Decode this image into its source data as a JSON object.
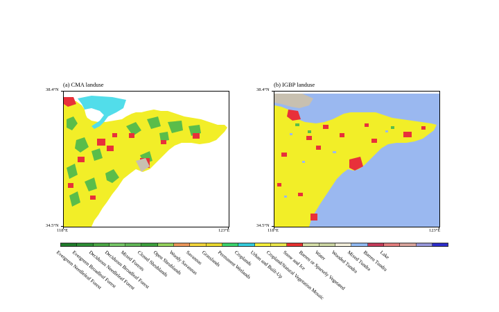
{
  "panels": [
    {
      "title": "(a) CMA landuse",
      "lat_top": "38.4°N",
      "lat_bottom": "34.5°N",
      "lon_left": "118°E",
      "lon_right": "123°E"
    },
    {
      "title": "(b) IGBP landuse",
      "lat_top": "38.4°N",
      "lat_bottom": "34.5°N",
      "lon_left": "118°E",
      "lon_right": "123°E"
    }
  ],
  "colors": {
    "croplands": "#f2ee28",
    "urban": "#e8303a",
    "water": "#9ab8f0",
    "forest": "#5abd4a",
    "wetland": "#52ddea",
    "barren": "#c8c0b0",
    "background": "#ffffff"
  },
  "legend": {
    "items": [
      {
        "label": "Evergreen Needleleaf Forest",
        "color": "#1f7a2a"
      },
      {
        "label": "Evergreen Broadleaf Forest",
        "color": "#2c8c34"
      },
      {
        "label": "Deciduous Needleleaf Forest",
        "color": "#4aa544"
      },
      {
        "label": "Deciduous Broadleaf Forest",
        "color": "#74c466"
      },
      {
        "label": "Mixed Forests",
        "color": "#5fb455"
      },
      {
        "label": "Closed Shrublands",
        "color": "#3c9e3c"
      },
      {
        "label": "Open Shrublands",
        "color": "#92cf5a"
      },
      {
        "label": "Woody Savannas",
        "color": "#e89457"
      },
      {
        "label": "Savannas",
        "color": "#f0d23a"
      },
      {
        "label": "Grasslands",
        "color": "#e7d62d"
      },
      {
        "label": "Permanent Wetlands",
        "color": "#3ad16b"
      },
      {
        "label": "Croplands",
        "color": "#34c9d9"
      },
      {
        "label": "Urban and Built-Up",
        "color": "#f4ee3a"
      },
      {
        "label": "Cropland/Natural Vegetation Mosaic",
        "color": "#e8e44a"
      },
      {
        "label": "Snow and Ice",
        "color": "#e3302e"
      },
      {
        "label": "Barren or Sparsely Vegetated",
        "color": "#d3dca6"
      },
      {
        "label": "Water",
        "color": "#c9d3a0"
      },
      {
        "label": "Wooded Tundra",
        "color": "#f0ecd8"
      },
      {
        "label": "Mixed Tundra",
        "color": "#90b8f0"
      },
      {
        "label": "Barren Tundra",
        "color": "#c23a58"
      },
      {
        "label": "Lake",
        "color": "#e07c7c"
      },
      {
        "label": "",
        "color": "#d6a29a"
      },
      {
        "label": "",
        "color": "#9696d8"
      },
      {
        "label": "",
        "color": "#2c2cc8"
      }
    ]
  }
}
